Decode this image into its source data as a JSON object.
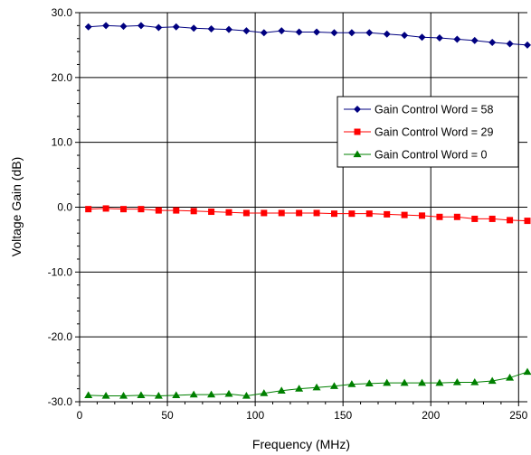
{
  "chart_data": {
    "type": "line",
    "title": "",
    "xlabel": "Frequency (MHz)",
    "ylabel": "Voltage Gain (dB)",
    "xlim": [
      0,
      255
    ],
    "ylim": [
      -30,
      30
    ],
    "x_ticks": [
      0,
      50,
      100,
      150,
      200,
      250
    ],
    "x_tick_labels": [
      "0",
      "50",
      "100",
      "150",
      "200",
      "250"
    ],
    "y_ticks": [
      30,
      20,
      10,
      0,
      -10,
      -20,
      -30
    ],
    "y_tick_labels": [
      "30.0",
      "20.0",
      "10.0",
      "0.0",
      "-10.0",
      "-20.0",
      "-30.0"
    ],
    "grid": true,
    "legend_position": "right",
    "x": [
      5,
      15,
      25,
      35,
      45,
      55,
      65,
      75,
      85,
      95,
      105,
      115,
      125,
      135,
      145,
      155,
      165,
      175,
      185,
      195,
      205,
      215,
      225,
      235,
      245,
      255
    ],
    "series": [
      {
        "name": "Gain Control Word = 58",
        "color": "#000080",
        "marker": "diamond",
        "values": [
          27.8,
          28.0,
          27.9,
          28.0,
          27.7,
          27.8,
          27.6,
          27.5,
          27.4,
          27.2,
          26.9,
          27.2,
          27.0,
          27.0,
          26.9,
          26.9,
          26.9,
          26.7,
          26.5,
          26.2,
          26.1,
          25.9,
          25.7,
          25.4,
          25.2,
          25.0
        ]
      },
      {
        "name": "Gain Control Word = 29",
        "color": "#ff0000",
        "marker": "square",
        "values": [
          -0.3,
          -0.2,
          -0.3,
          -0.3,
          -0.5,
          -0.5,
          -0.6,
          -0.7,
          -0.8,
          -0.9,
          -0.9,
          -0.9,
          -0.9,
          -0.9,
          -1.0,
          -1.0,
          -1.0,
          -1.1,
          -1.2,
          -1.3,
          -1.5,
          -1.5,
          -1.8,
          -1.8,
          -2.0,
          -2.1
        ]
      },
      {
        "name": "Gain Control Word = 0",
        "color": "#008000",
        "marker": "triangle",
        "values": [
          -29.0,
          -29.1,
          -29.1,
          -29.0,
          -29.1,
          -29.0,
          -28.9,
          -28.9,
          -28.8,
          -29.1,
          -28.7,
          -28.3,
          -28.0,
          -27.8,
          -27.6,
          -27.3,
          -27.2,
          -27.1,
          -27.1,
          -27.1,
          -27.1,
          -27.0,
          -27.0,
          -26.8,
          -26.3,
          -25.4
        ]
      }
    ]
  }
}
